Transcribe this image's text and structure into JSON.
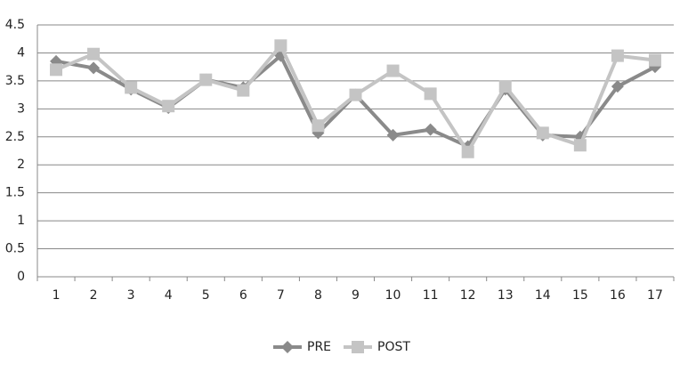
{
  "chart_data": {
    "type": "line",
    "categories": [
      "1",
      "2",
      "3",
      "4",
      "5",
      "6",
      "7",
      "8",
      "9",
      "10",
      "11",
      "12",
      "13",
      "14",
      "15",
      "16",
      "17"
    ],
    "series": [
      {
        "name": "PRE",
        "color": "#8a8a8a",
        "marker": "diamond",
        "values": [
          3.85,
          3.73,
          3.35,
          3.02,
          3.52,
          3.38,
          3.95,
          2.57,
          3.25,
          2.53,
          2.63,
          2.33,
          3.35,
          2.53,
          2.5,
          3.4,
          3.75
        ]
      },
      {
        "name": "POST",
        "color": "#c4c4c4",
        "marker": "square",
        "values": [
          3.7,
          3.98,
          3.38,
          3.05,
          3.52,
          3.33,
          4.13,
          2.7,
          3.25,
          3.68,
          3.27,
          2.23,
          3.4,
          2.57,
          2.35,
          3.95,
          3.87
        ]
      }
    ],
    "ylim": [
      0,
      4.5
    ],
    "yticks": [
      0,
      0.5,
      1,
      1.5,
      2,
      2.5,
      3,
      3.5,
      4,
      4.5
    ],
    "grid": true,
    "legend": "bottom"
  }
}
